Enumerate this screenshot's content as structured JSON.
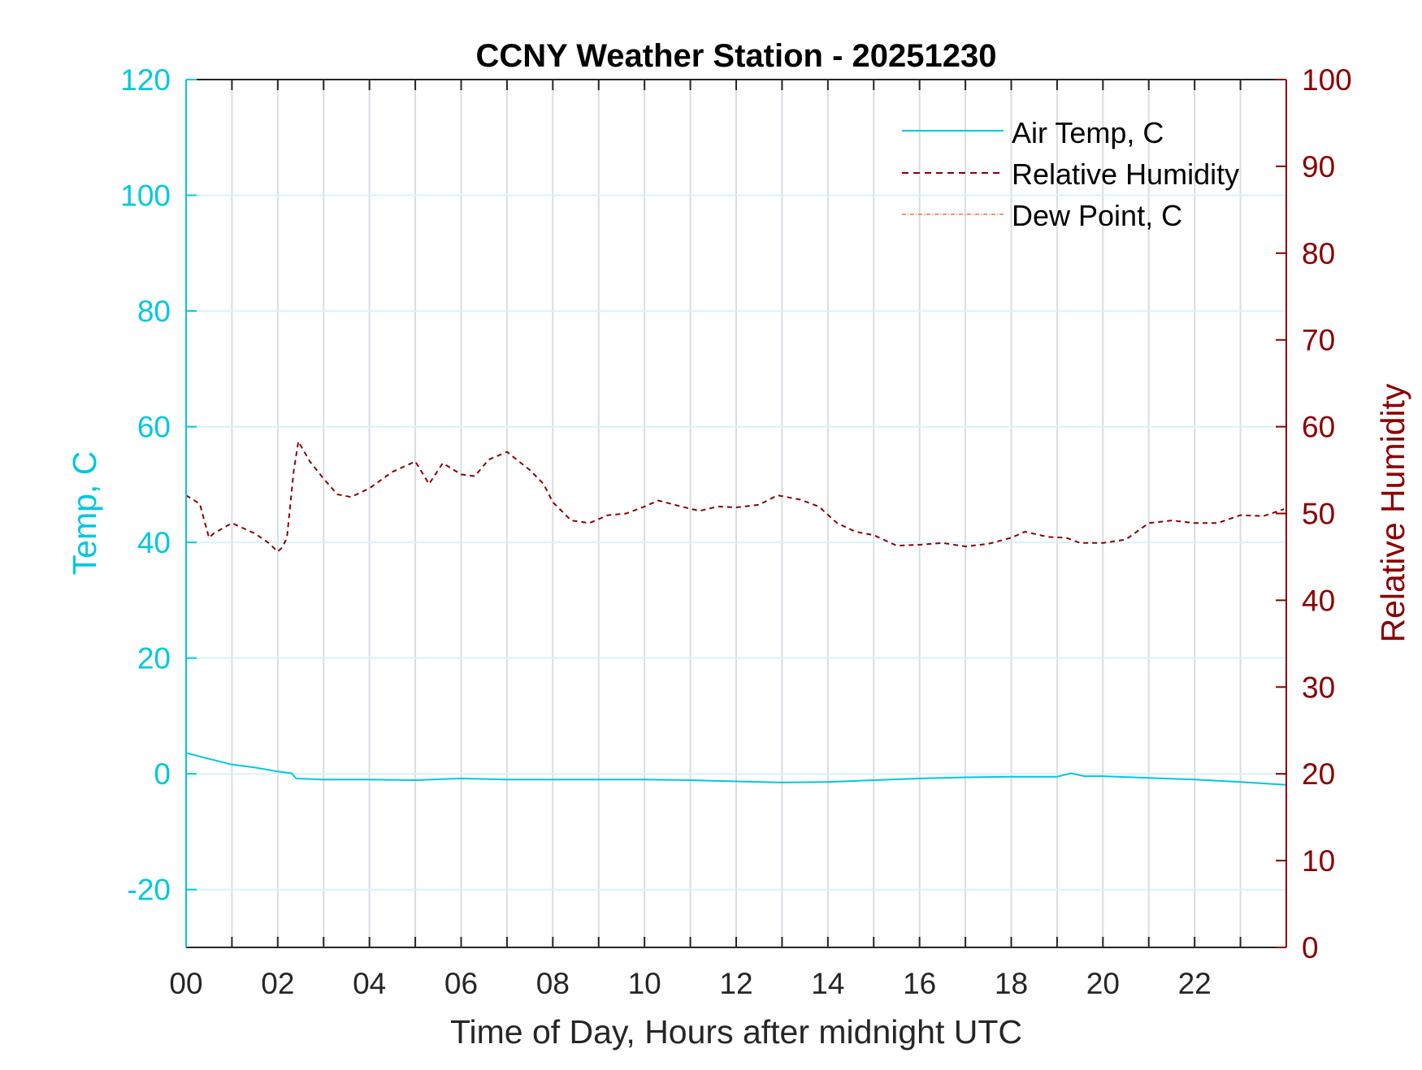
{
  "chart_data": {
    "type": "line",
    "title": "CCNY Weather Station - 20251230",
    "xlabel": "Time of Day, Hours after midnight UTC",
    "ylabel_left": "Temp, C",
    "ylabel_right": "Relative Humidity",
    "xlim": [
      0,
      24
    ],
    "ylim_left": [
      -30,
      120
    ],
    "ylim_right": [
      0,
      100
    ],
    "x_ticks": [
      "00",
      "02",
      "04",
      "06",
      "08",
      "10",
      "12",
      "14",
      "16",
      "18",
      "20",
      "22"
    ],
    "y_ticks_left": [
      -20,
      0,
      20,
      40,
      60,
      80,
      100,
      120
    ],
    "y_ticks_right": [
      0,
      10,
      20,
      30,
      40,
      50,
      60,
      70,
      80,
      90,
      100
    ],
    "grid": true,
    "legend_position": "top-right",
    "colors": {
      "temp": "#00c8e0",
      "rh": "#8b0000",
      "dew": "#f07040",
      "grid_v": "#d8dde3",
      "grid_h": "#d6f4fa"
    },
    "series": [
      {
        "name": "Air Temp, C",
        "axis": "left",
        "style": "solid",
        "x": [
          0,
          0.5,
          1,
          1.5,
          2,
          2.3,
          2.4,
          3,
          4,
          5,
          6,
          7,
          8,
          9,
          10,
          11,
          12,
          13,
          14,
          15,
          16,
          17,
          18,
          19,
          19.3,
          19.6,
          20,
          21,
          22,
          23,
          24
        ],
        "y": [
          3.6,
          2.6,
          1.6,
          1.1,
          0.4,
          0.1,
          -0.8,
          -1.0,
          -1.0,
          -1.1,
          -0.8,
          -1.0,
          -1.0,
          -1.0,
          -1.0,
          -1.1,
          -1.3,
          -1.5,
          -1.4,
          -1.1,
          -0.8,
          -0.6,
          -0.5,
          -0.5,
          0.1,
          -0.4,
          -0.4,
          -0.7,
          -1.0,
          -1.4,
          -1.9
        ]
      },
      {
        "name": "Relative Humidity",
        "axis": "right",
        "style": "dashed",
        "x": [
          0,
          0.3,
          0.5,
          0.6,
          1.0,
          1.5,
          1.8,
          2.0,
          2.1,
          2.2,
          2.35,
          2.45,
          2.7,
          3.0,
          3.3,
          3.6,
          4.0,
          4.5,
          5.0,
          5.3,
          5.6,
          6.0,
          6.3,
          6.6,
          7.0,
          7.5,
          7.8,
          8.0,
          8.4,
          8.8,
          9.2,
          9.6,
          10.0,
          10.3,
          10.8,
          11.2,
          11.6,
          12.0,
          12.5,
          12.9,
          13.4,
          13.8,
          14.2,
          14.6,
          15.0,
          15.5,
          16.0,
          16.5,
          17.0,
          17.5,
          18.0,
          18.3,
          18.8,
          19.2,
          19.5,
          20.0,
          20.5,
          21.0,
          21.5,
          22.0,
          22.5,
          23.0,
          23.5,
          23.95
        ],
        "y": [
          52.1,
          51.1,
          47.2,
          47.7,
          48.9,
          47.7,
          46.6,
          45.6,
          46.1,
          47.2,
          55.0,
          58.3,
          56.0,
          54.0,
          52.2,
          51.9,
          52.9,
          54.8,
          56.0,
          53.4,
          55.8,
          54.5,
          54.3,
          56.2,
          57.1,
          55.0,
          53.4,
          51.3,
          49.2,
          48.9,
          49.8,
          50.0,
          50.8,
          51.5,
          50.8,
          50.3,
          50.8,
          50.7,
          51.0,
          52.1,
          51.6,
          50.8,
          48.9,
          47.9,
          47.5,
          46.3,
          46.4,
          46.6,
          46.2,
          46.5,
          47.2,
          47.9,
          47.3,
          47.2,
          46.6,
          46.6,
          47.0,
          48.9,
          49.2,
          48.9,
          48.9,
          49.8,
          49.7,
          50.5
        ]
      },
      {
        "name": "Dew Point, C",
        "axis": "left",
        "style": "dash-dot",
        "x": [],
        "y": []
      }
    ]
  }
}
